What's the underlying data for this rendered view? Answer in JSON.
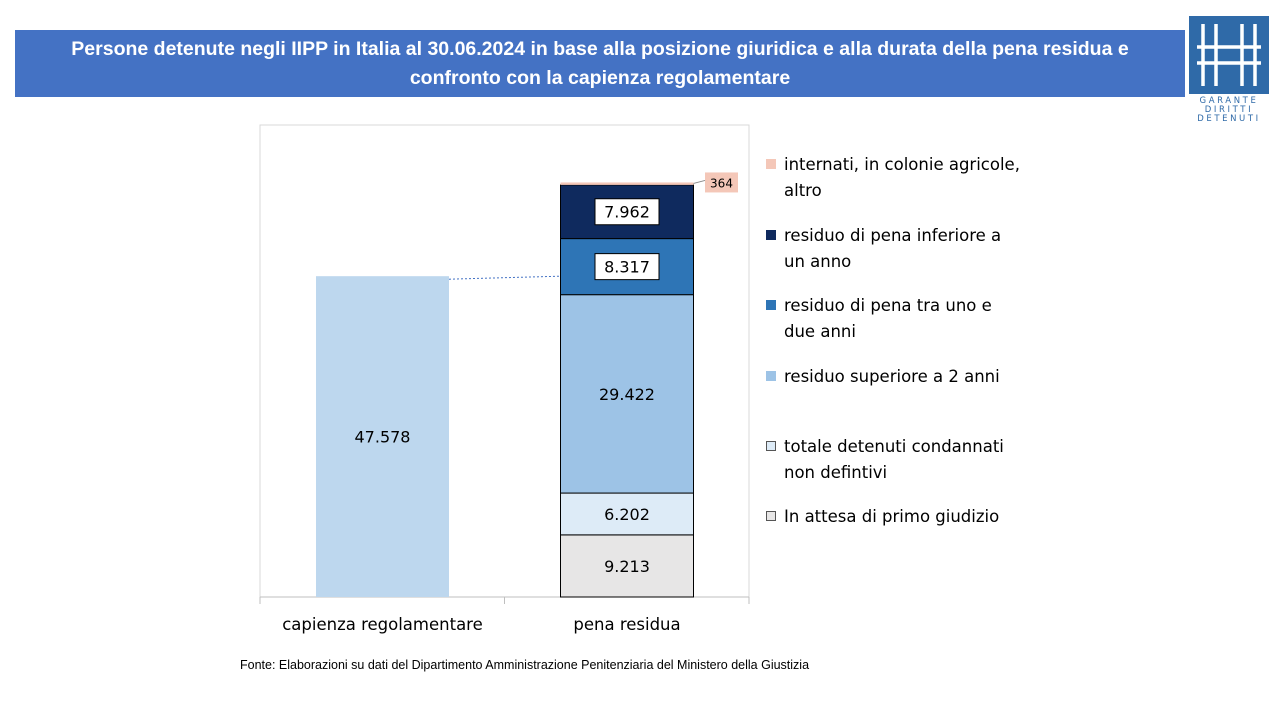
{
  "title": "Persone detenute negli IIPP in Italia al 30.06.2024 in base alla posizione giuridica e alla durata della pena residua e confronto con la capienza regolamentare",
  "logo": {
    "lines": [
      "GARANTE",
      "DIRITTI",
      "DETENUTI"
    ]
  },
  "source": "Fonte:  Elaborazioni su dati del Dipartimento  Amministrazione Penitenziaria del Ministero della Giustizia",
  "chart_data": {
    "type": "bar",
    "stacked": true,
    "categories": [
      "capienza regolamentare",
      "pena residua"
    ],
    "series": [
      {
        "name": "In attesa di primo giudizio",
        "values": [
          null,
          9213
        ],
        "labels": [
          null,
          "9.213"
        ],
        "color": "#e7e6e6"
      },
      {
        "name": "totale detenuti condannati non defintivi",
        "values": [
          null,
          6202
        ],
        "labels": [
          null,
          "6.202"
        ],
        "color": "#ddebf7"
      },
      {
        "name": "residuo superiore a 2 anni",
        "values": [
          null,
          29422
        ],
        "labels": [
          null,
          "29.422"
        ],
        "color": "#9dc3e6"
      },
      {
        "name": "residuo di pena tra uno e due anni",
        "values": [
          null,
          8317
        ],
        "labels": [
          null,
          "8.317"
        ],
        "color": "#2e75b6"
      },
      {
        "name": "residuo di pena inferiore a un anno",
        "values": [
          null,
          7962
        ],
        "labels": [
          null,
          "7.962"
        ],
        "color": "#0f2a5e"
      },
      {
        "name": "internati, in colonie agricole, altro",
        "values": [
          null,
          364
        ],
        "labels": [
          null,
          "364"
        ],
        "color": "#f4c7b8"
      }
    ],
    "capacity": {
      "value": 47578,
      "label": "47.578",
      "color": "#bdd7ee"
    },
    "ylim": [
      0,
      70000
    ],
    "grid": false,
    "legend_position": "right"
  }
}
